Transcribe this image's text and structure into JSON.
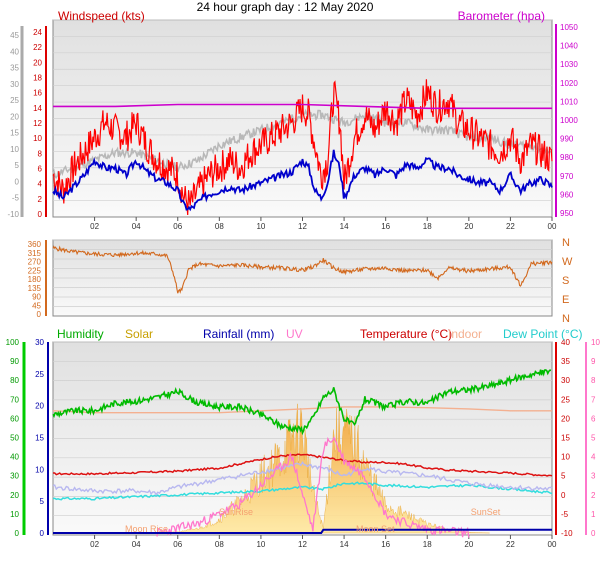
{
  "title": "24 hour graph day : 12 May 2020",
  "x_ticks": [
    "02",
    "04",
    "06",
    "08",
    "10",
    "12",
    "14",
    "16",
    "18",
    "20",
    "22",
    "00"
  ],
  "colors": {
    "wind": "#ff0000",
    "gust": "#ff0000",
    "avg": "#0000cc",
    "baro": "#cc00cc",
    "grey": "#b8b8b8",
    "dir": "#d2691e",
    "hum": "#00bb00",
    "solar": "#ffcc55",
    "rain": "#0000aa",
    "uv": "#ff77cc",
    "temp": "#dd1111",
    "indoor": "#f4b090",
    "dew": "#33dddd",
    "sunrise": "#f4a070"
  },
  "chart_data": [
    {
      "type": "line",
      "title": "Windspeed (kts)",
      "ylabel_right": "Barometer (hpa)",
      "left_ticks_grey": [
        "45",
        "40",
        "35",
        "30",
        "25",
        "20",
        "15",
        "10",
        "5",
        "0",
        "-5",
        "-10"
      ],
      "left_ticks_red": [
        "24",
        "22",
        "20",
        "18",
        "16",
        "14",
        "12",
        "10",
        "8",
        "6",
        "4",
        "2",
        "0"
      ],
      "right_ticks": [
        "1050",
        "1040",
        "1030",
        "1020",
        "1010",
        "1000",
        "990",
        "980",
        "970",
        "960",
        "950"
      ],
      "ylim_wind": [
        0,
        24
      ],
      "ylim_baro": [
        950,
        1050
      ],
      "series": [
        {
          "name": "Windspeed (kts)",
          "x": [
            0,
            0.5,
            1,
            1.5,
            2,
            2.5,
            3,
            3.5,
            4,
            4.5,
            5,
            5.5,
            6,
            6.3,
            6.6,
            7,
            7.5,
            8,
            8.5,
            9,
            9.5,
            10,
            10.5,
            11,
            11.5,
            12,
            12.3,
            12.6,
            12.9,
            13.2,
            13.5,
            13.8,
            14,
            14.5,
            15,
            15.5,
            16,
            16.5,
            17,
            17.5,
            18,
            18.5,
            19,
            19.5,
            20,
            20.5,
            21,
            21.5,
            22,
            22.5,
            23,
            23.5,
            24
          ],
          "values": [
            5,
            3,
            6,
            8,
            10,
            12,
            11,
            10,
            12,
            9,
            7,
            6,
            5,
            2,
            1,
            3,
            5,
            6,
            7,
            6,
            8,
            9,
            10,
            11,
            12,
            14,
            13,
            9,
            5,
            7,
            16,
            12,
            4,
            10,
            13,
            11,
            14,
            12,
            15,
            13,
            16,
            14,
            15,
            12,
            11,
            10,
            9,
            8,
            10,
            7,
            9,
            8,
            7
          ]
        },
        {
          "name": "Average",
          "x": [
            0,
            0.5,
            1,
            1.5,
            2,
            2.5,
            3,
            3.5,
            4,
            4.5,
            5,
            5.5,
            6,
            6.3,
            6.6,
            7,
            7.5,
            8,
            8.5,
            9,
            9.5,
            10,
            10.5,
            11,
            11.5,
            12,
            12.3,
            12.6,
            12.9,
            13.2,
            13.5,
            13.8,
            14,
            14.5,
            15,
            15.5,
            16,
            16.5,
            17,
            17.5,
            18,
            18.5,
            19,
            19.5,
            20,
            20.5,
            21,
            21.5,
            22,
            22.5,
            23,
            23.5,
            24
          ],
          "values": [
            3,
            2,
            3.5,
            5,
            7,
            6,
            6,
            5,
            7,
            5.5,
            4.5,
            4,
            3,
            1,
            0.5,
            1.5,
            2.5,
            3,
            3.5,
            3,
            3.5,
            4,
            4.5,
            5,
            5.5,
            7,
            6,
            3,
            2,
            4,
            8,
            6,
            2,
            5,
            6,
            5,
            6,
            5,
            6.5,
            6,
            7,
            6,
            6,
            5,
            4.5,
            4,
            4,
            3,
            5,
            3,
            4,
            4.5,
            3.5
          ]
        },
        {
          "name": "Barometer (hpa)",
          "x": [
            0,
            3,
            6,
            9,
            12,
            15,
            18,
            21,
            24
          ],
          "values": [
            1007,
            1007,
            1008,
            1008,
            1008,
            1007,
            1006,
            1006,
            1006
          ]
        },
        {
          "name": "",
          "x": [
            0,
            1,
            2,
            3,
            4,
            5,
            6,
            7,
            8,
            9,
            10,
            11,
            12,
            13,
            14,
            15,
            16,
            17,
            18,
            19,
            20,
            21,
            22,
            23,
            24
          ],
          "values": [
            5,
            6,
            7,
            8,
            8,
            7,
            6,
            7,
            9,
            10,
            11,
            12,
            13,
            13,
            12,
            13,
            12,
            12,
            11,
            11,
            10,
            10,
            9,
            9,
            8
          ]
        }
      ]
    },
    {
      "type": "line",
      "title": "",
      "left_ticks": [
        "360",
        "315",
        "270",
        "225",
        "180",
        "135",
        "90",
        "45",
        "0"
      ],
      "right_labels": [
        "N",
        "W",
        "S",
        "E",
        "N"
      ],
      "ylim": [
        0,
        360
      ],
      "series": [
        {
          "name": "",
          "x": [
            0,
            1,
            2,
            3,
            4,
            5,
            5.5,
            5.8,
            6,
            6.2,
            6.5,
            7,
            8,
            9,
            10,
            11,
            12,
            12.5,
            13,
            13.5,
            14,
            15,
            16,
            17,
            18,
            18.5,
            19,
            20,
            21,
            22,
            22.5,
            23,
            24
          ],
          "values": [
            330,
            310,
            300,
            295,
            305,
            300,
            290,
            200,
            110,
            120,
            220,
            250,
            240,
            245,
            235,
            230,
            220,
            235,
            270,
            230,
            210,
            225,
            230,
            215,
            220,
            180,
            230,
            215,
            225,
            235,
            140,
            250,
            260
          ]
        }
      ]
    },
    {
      "type": "area",
      "title": "",
      "legend": [
        "Humidity",
        "Solar",
        "Rainfall (mm)",
        "UV",
        "Temperature (°C)",
        "Indoor",
        "Dew Point (°C)"
      ],
      "left_ticks_green": [
        "100",
        "90",
        "80",
        "70",
        "60",
        "50",
        "40",
        "30",
        "20",
        "10",
        "0"
      ],
      "left_ticks_blue": [
        "30",
        "25",
        "20",
        "15",
        "10",
        "5",
        "0"
      ],
      "right_ticks_temp": [
        "40",
        "35",
        "30",
        "25",
        "20",
        "15",
        "10",
        "5",
        "0",
        "-5",
        "-10"
      ],
      "right_ticks_uv": [
        "10",
        "9",
        "8",
        "7",
        "6",
        "5",
        "4",
        "3",
        "2",
        "1",
        "0"
      ],
      "annotations": [
        "Moon Rise",
        "SunRise",
        "Moon Set",
        "SunSet"
      ],
      "series": [
        {
          "name": "Humidity",
          "x": [
            0,
            1,
            2,
            3,
            4,
            5,
            6,
            7,
            8,
            9,
            10,
            11,
            12,
            12.5,
            13,
            13.5,
            14,
            14.5,
            15,
            16,
            17,
            18,
            19,
            20,
            21,
            22,
            23,
            24
          ],
          "values": [
            62,
            64,
            64,
            68,
            69,
            71,
            74,
            68,
            66,
            66,
            62,
            56,
            54,
            60,
            71,
            75,
            60,
            56,
            70,
            66,
            69,
            68,
            74,
            75,
            77,
            80,
            83,
            85
          ]
        },
        {
          "name": "Solar",
          "x": [
            5,
            6,
            7,
            8,
            9,
            10,
            11,
            11.5,
            12,
            12.5,
            13,
            13.5,
            14,
            14.5,
            15,
            16,
            17,
            18,
            19,
            20,
            21
          ],
          "values": [
            0,
            5,
            20,
            60,
            140,
            250,
            340,
            420,
            460,
            180,
            20,
            430,
            440,
            400,
            300,
            120,
            80,
            40,
            15,
            3,
            0
          ]
        },
        {
          "name": "Rainfall (mm)",
          "x": [
            0,
            12.9,
            13,
            24
          ],
          "values": [
            0,
            0,
            0.5,
            0.5
          ]
        },
        {
          "name": "UV",
          "x": [
            5,
            7,
            9,
            11,
            11.5,
            12,
            12.5,
            13,
            13.5,
            14,
            15,
            16,
            17,
            18,
            20
          ],
          "values": [
            0,
            0.5,
            1.5,
            3.5,
            4,
            2,
            0.2,
            4.5,
            5,
            3.8,
            3,
            1,
            0.5,
            0.2,
            0
          ]
        },
        {
          "name": "Temperature (°C)",
          "x": [
            0,
            2,
            4,
            6,
            8,
            10,
            11,
            12,
            12.5,
            13,
            14,
            15,
            16,
            17,
            18,
            19,
            20,
            22,
            24
          ],
          "values": [
            5.5,
            5.5,
            5.8,
            6.2,
            7,
            9.3,
            10.2,
            10.5,
            10.2,
            9.8,
            9,
            8.5,
            8.5,
            8,
            7,
            6.5,
            6.2,
            5.7,
            5
          ]
        },
        {
          "name": "Indoor",
          "x": [
            0,
            2,
            4,
            6,
            8,
            10,
            12,
            14,
            16,
            18,
            20,
            22,
            24
          ],
          "values": [
            22,
            21.5,
            21.5,
            21.5,
            21.5,
            22,
            22.5,
            23,
            23,
            22.8,
            22.5,
            22,
            22
          ]
        },
        {
          "name": "Dew Point (°C)",
          "x": [
            0,
            2,
            4,
            6,
            8,
            10,
            12,
            13,
            14,
            15,
            16,
            18,
            20,
            22,
            24
          ],
          "values": [
            -1,
            -1,
            -0.5,
            0,
            0.5,
            1,
            2,
            1.5,
            3,
            3,
            2.5,
            2,
            2.5,
            1.5,
            0.5
          ]
        },
        {
          "name": "",
          "x": [
            0,
            2,
            4,
            5,
            6,
            8,
            10,
            11,
            12,
            13,
            14,
            15,
            16,
            18,
            20,
            22,
            24
          ],
          "values": [
            2,
            1,
            1,
            0.5,
            2,
            4,
            6,
            7,
            8,
            7,
            5,
            7,
            6,
            5,
            3,
            2,
            1.5
          ]
        }
      ]
    }
  ]
}
